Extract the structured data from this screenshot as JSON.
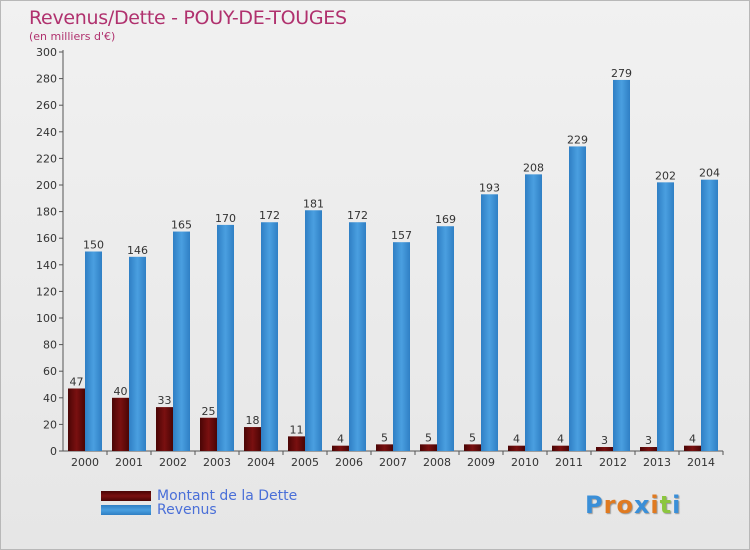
{
  "chart_data": {
    "type": "bar",
    "title": "Revenus/Dette - POUY-DE-TOUGES",
    "subtitle": "(en milliers d'€)",
    "categories": [
      "2000",
      "2001",
      "2002",
      "2003",
      "2004",
      "2005",
      "2006",
      "2007",
      "2008",
      "2009",
      "2010",
      "2011",
      "2012",
      "2013",
      "2014"
    ],
    "series": [
      {
        "name": "Montant de la Dette",
        "color": "#7a1010",
        "values": [
          47,
          40,
          33,
          25,
          18,
          11,
          4,
          5,
          5,
          5,
          4,
          4,
          3,
          3,
          4
        ]
      },
      {
        "name": "Revenus",
        "color": "#4a9fe0",
        "values": [
          150,
          146,
          165,
          170,
          172,
          181,
          172,
          157,
          169,
          193,
          208,
          229,
          279,
          202,
          204
        ]
      }
    ],
    "ylim": [
      0,
      300
    ],
    "yticks": [
      0,
      20,
      40,
      60,
      80,
      100,
      120,
      140,
      160,
      180,
      200,
      220,
      240,
      260,
      280,
      300
    ],
    "grid": false,
    "legend": "bottom-left"
  },
  "logo": {
    "letters": [
      "P",
      "r",
      "o",
      "x",
      "i",
      "t",
      "i"
    ],
    "colors": [
      "#3a8fd8",
      "#e07a20",
      "#e07a20",
      "#3a8fd8",
      "#e07a20",
      "#8cc63f",
      "#3a8fd8"
    ]
  }
}
